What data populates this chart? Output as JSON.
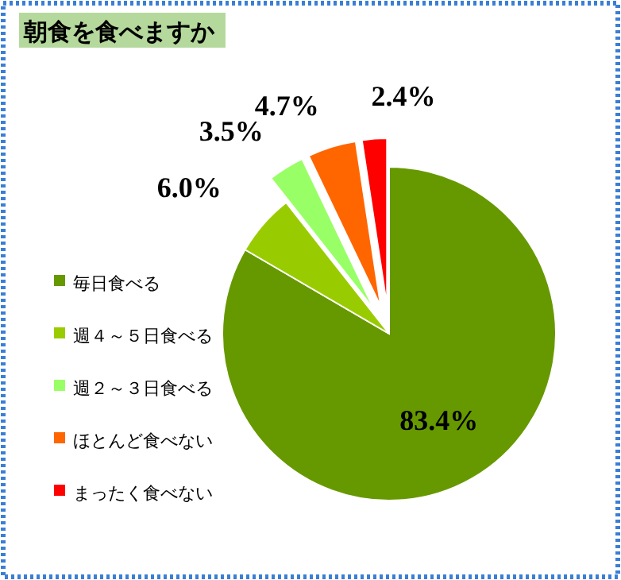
{
  "chart_data": {
    "type": "pie",
    "title": "朝食を食べますか",
    "categories": [
      "毎日食べる",
      "週４～５日食べる",
      "週２～３日食べる",
      "ほとんど食べない",
      "まったく食べない"
    ],
    "values": [
      83.4,
      6.0,
      3.5,
      4.7,
      2.4
    ],
    "colors": [
      "#669900",
      "#99cc00",
      "#99ff66",
      "#ff6600",
      "#ff0000"
    ],
    "value_labels": [
      "83.4%",
      "6.0%",
      "3.5%",
      "4.7%",
      "2.4%"
    ],
    "legend": "left"
  }
}
